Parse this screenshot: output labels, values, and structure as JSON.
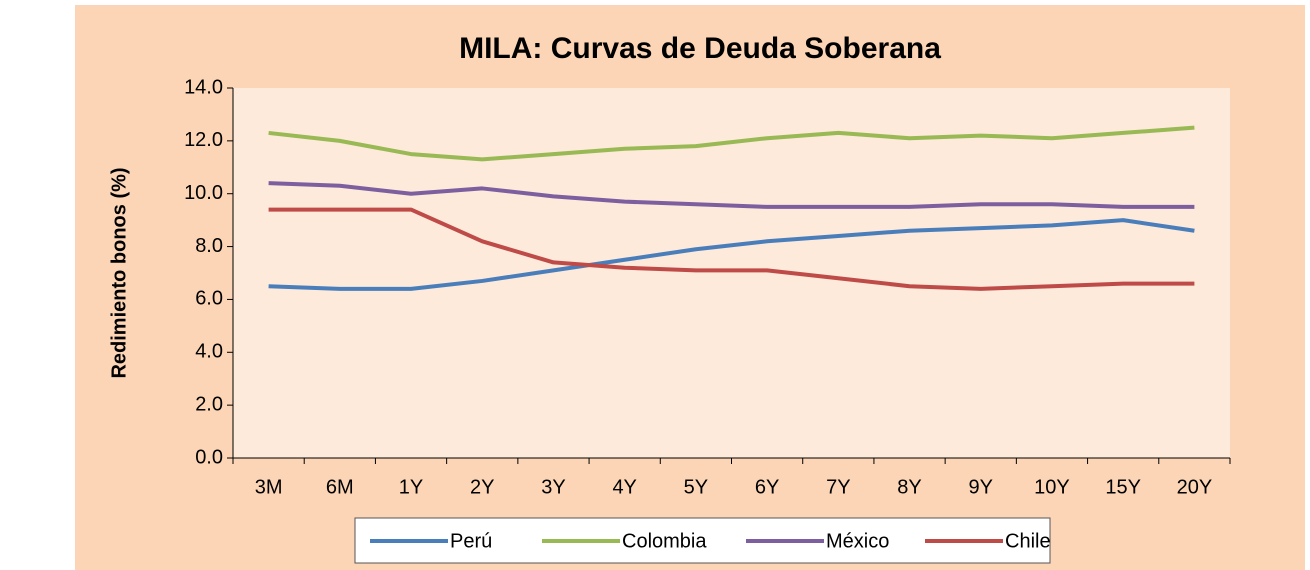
{
  "chart_data": {
    "type": "line",
    "title": "MILA: Curvas de Deuda Soberana",
    "y_label": "Redimiento bonos (%)",
    "categories": [
      "3M",
      "6M",
      "1Y",
      "2Y",
      "3Y",
      "4Y",
      "5Y",
      "6Y",
      "7Y",
      "8Y",
      "9Y",
      "10Y",
      "15Y",
      "20Y"
    ],
    "series": [
      {
        "name": "Perú",
        "color": "#4a7ebb",
        "values": [
          6.5,
          6.4,
          6.4,
          6.7,
          7.1,
          7.5,
          7.9,
          8.2,
          8.4,
          8.6,
          8.7,
          8.8,
          9.0,
          8.6
        ]
      },
      {
        "name": "Colombia",
        "color": "#98b954",
        "values": [
          12.3,
          12.0,
          11.5,
          11.3,
          11.5,
          11.7,
          11.8,
          12.1,
          12.3,
          12.1,
          12.2,
          12.1,
          12.3,
          12.5
        ]
      },
      {
        "name": "México",
        "color": "#7d5fa0",
        "values": [
          10.4,
          10.3,
          10.0,
          10.2,
          9.9,
          9.7,
          9.6,
          9.5,
          9.5,
          9.5,
          9.6,
          9.6,
          9.5,
          9.5
        ]
      },
      {
        "name": "Chile",
        "color": "#be4b48",
        "values": [
          9.4,
          9.4,
          9.4,
          8.2,
          7.4,
          7.2,
          7.1,
          7.1,
          6.8,
          6.5,
          6.4,
          6.5,
          6.6,
          6.6
        ]
      }
    ],
    "ylim": [
      0,
      14
    ],
    "yticks": [
      {
        "value": 0,
        "label": "0.0"
      },
      {
        "value": 2,
        "label": "2.0"
      },
      {
        "value": 4,
        "label": "4.0"
      },
      {
        "value": 6,
        "label": "6.0"
      },
      {
        "value": 8,
        "label": "8.0"
      },
      {
        "value": 10,
        "label": "10.0"
      },
      {
        "value": 12,
        "label": "12.0"
      },
      {
        "value": 14,
        "label": "14.0"
      }
    ],
    "grid": false,
    "legend": "bottom"
  }
}
